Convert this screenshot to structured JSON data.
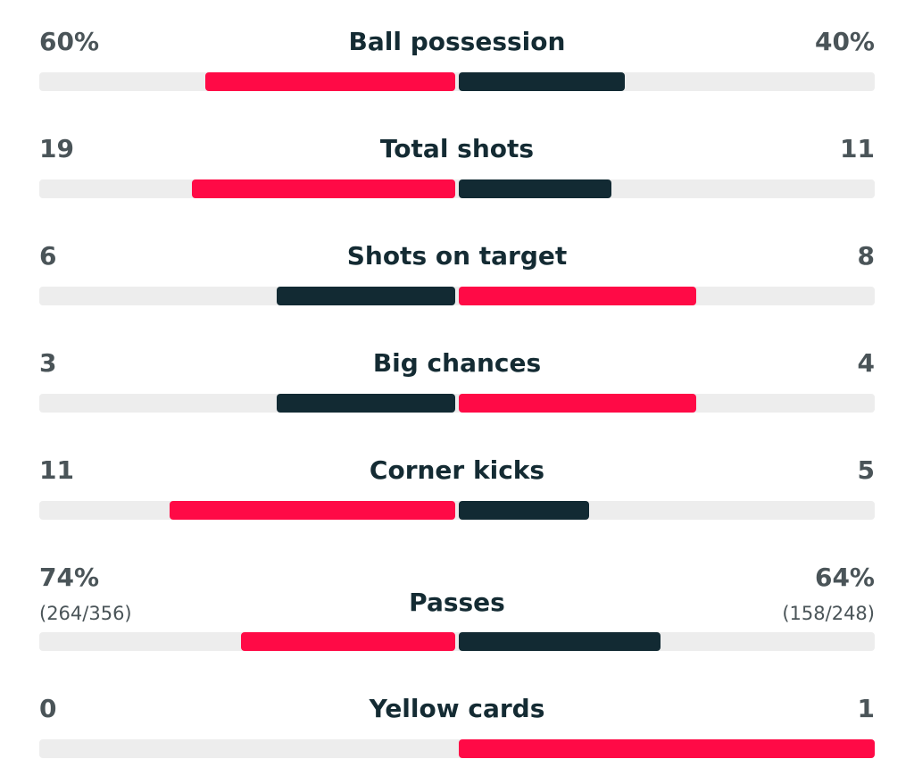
{
  "colors": {
    "home_leading": "#ff0a46",
    "away_leading": "#122a33",
    "track": "#ededed"
  },
  "stats": [
    {
      "label": "Ball possession",
      "home": "60%",
      "away": "40%",
      "home_value": 60,
      "away_value": 40,
      "scale_max": 100
    },
    {
      "label": "Total shots",
      "home": "19",
      "away": "11",
      "home_value": 19,
      "away_value": 11,
      "scale_max": 30
    },
    {
      "label": "Shots on target",
      "home": "6",
      "away": "8",
      "home_value": 6,
      "away_value": 8,
      "scale_max": 14
    },
    {
      "label": "Big chances",
      "home": "3",
      "away": "4",
      "home_value": 3,
      "away_value": 4,
      "scale_max": 7
    },
    {
      "label": "Corner kicks",
      "home": "11",
      "away": "5",
      "home_value": 11,
      "away_value": 5,
      "scale_max": 16
    },
    {
      "label": "Passes",
      "home": "74%",
      "away": "64%",
      "home_sub": "(264/356)",
      "away_sub": "(158/248)",
      "home_value": 264,
      "away_value": 248,
      "scale_max": 512
    },
    {
      "label": "Yellow cards",
      "home": "0",
      "away": "1",
      "home_value": 0,
      "away_value": 1,
      "scale_max": 1
    }
  ]
}
